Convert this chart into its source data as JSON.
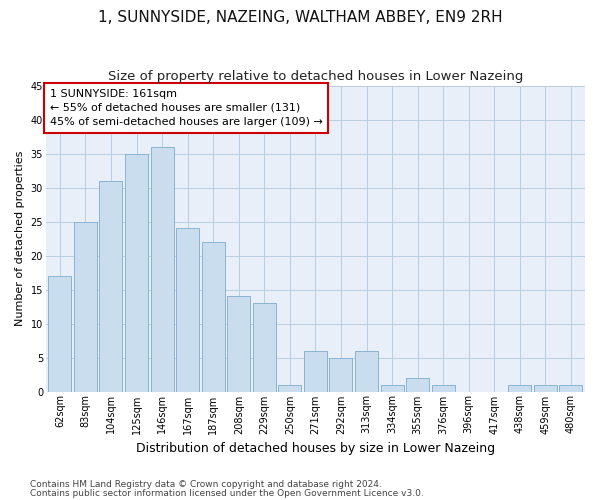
{
  "title": "1, SUNNYSIDE, NAZEING, WALTHAM ABBEY, EN9 2RH",
  "subtitle": "Size of property relative to detached houses in Lower Nazeing",
  "xlabel": "Distribution of detached houses by size in Lower Nazeing",
  "ylabel": "Number of detached properties",
  "categories": [
    "62sqm",
    "83sqm",
    "104sqm",
    "125sqm",
    "146sqm",
    "167sqm",
    "187sqm",
    "208sqm",
    "229sqm",
    "250sqm",
    "271sqm",
    "292sqm",
    "313sqm",
    "334sqm",
    "355sqm",
    "376sqm",
    "396sqm",
    "417sqm",
    "438sqm",
    "459sqm",
    "480sqm"
  ],
  "values": [
    17,
    25,
    31,
    35,
    36,
    24,
    22,
    14,
    13,
    1,
    6,
    5,
    6,
    1,
    2,
    1,
    0,
    0,
    1,
    1,
    1
  ],
  "bar_color": "#c9ddef",
  "bar_edge_color": "#8ab4d4",
  "background_color": "#ffffff",
  "ax_background": "#e8eff8",
  "grid_color": "#b8cde0",
  "ylim": [
    0,
    45
  ],
  "yticks": [
    0,
    5,
    10,
    15,
    20,
    25,
    30,
    35,
    40,
    45
  ],
  "annotation_text": "1 SUNNYSIDE: 161sqm\n← 55% of detached houses are smaller (131)\n45% of semi-detached houses are larger (109) →",
  "annotation_box_color": "#ffffff",
  "annotation_box_edge": "#cc0000",
  "footer1": "Contains HM Land Registry data © Crown copyright and database right 2024.",
  "footer2": "Contains public sector information licensed under the Open Government Licence v3.0.",
  "title_fontsize": 11,
  "subtitle_fontsize": 9.5,
  "xlabel_fontsize": 9,
  "ylabel_fontsize": 8,
  "tick_fontsize": 7,
  "annotation_fontsize": 8,
  "footer_fontsize": 6.5
}
